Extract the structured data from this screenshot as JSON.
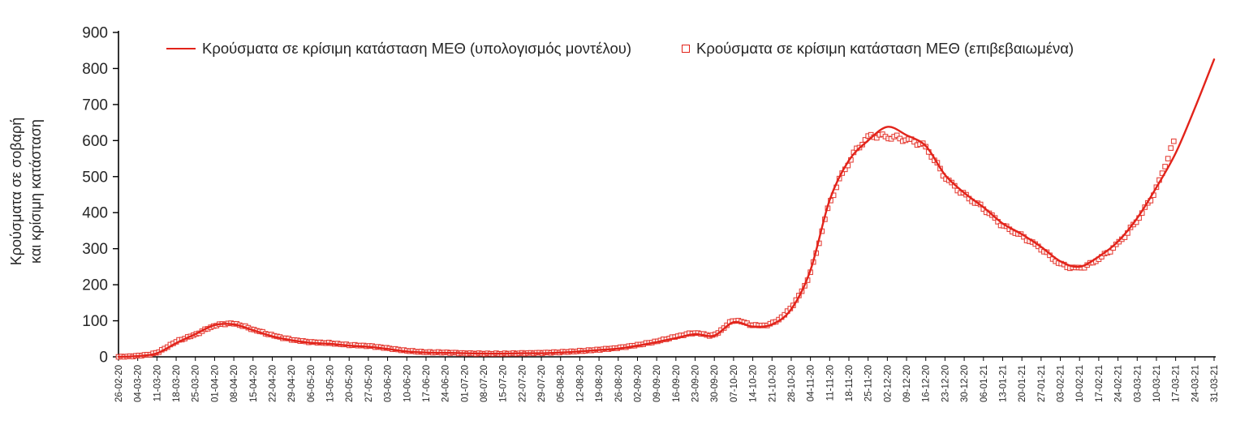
{
  "chart": {
    "y_axis_title_line1": "Κρούσματα σε σοβαρή",
    "y_axis_title_line2": "και κρίσιμη κατάσταση",
    "legend": {
      "model_label": "Κρούσματα σε κρίσιμη κατάσταση ΜΕΘ (υπολογισμός μοντέλου)",
      "confirmed_label": "Κρούσματα σε κρίσιμη κατάσταση ΜΕΘ (επιβεβαιωμένα)"
    },
    "colors": {
      "model_line": "#e2231a",
      "confirmed_marker": "#e2231a",
      "axis": "#000000",
      "text": "#262626"
    }
  },
  "chart_data": {
    "type": "line",
    "title": "",
    "ylabel": "Κρούσματα σε σοβαρή και κρίσιμη κατάσταση",
    "xlabel": "",
    "ylim": [
      0,
      900
    ],
    "yticks": [
      0,
      100,
      200,
      300,
      400,
      500,
      600,
      700,
      800,
      900
    ],
    "grid": false,
    "legend_position": "top",
    "x": [
      "26-02-20",
      "04-03-20",
      "11-03-20",
      "18-03-20",
      "25-03-20",
      "01-04-20",
      "08-04-20",
      "15-04-20",
      "22-04-20",
      "29-04-20",
      "06-05-20",
      "13-05-20",
      "20-05-20",
      "27-05-20",
      "03-06-20",
      "10-06-20",
      "17-06-20",
      "24-06-20",
      "01-07-20",
      "08-07-20",
      "15-07-20",
      "22-07-20",
      "29-07-20",
      "05-08-20",
      "12-08-20",
      "19-08-20",
      "26-08-20",
      "02-09-20",
      "09-09-20",
      "16-09-20",
      "23-09-20",
      "30-09-20",
      "07-10-20",
      "14-10-20",
      "21-10-20",
      "28-10-20",
      "04-11-20",
      "11-11-20",
      "18-11-20",
      "25-11-20",
      "02-12-20",
      "09-12-20",
      "16-12-20",
      "23-12-20",
      "30-12-20",
      "06-01-21",
      "13-01-21",
      "20-01-21",
      "27-01-21",
      "03-02-21",
      "10-02-21",
      "17-02-21",
      "24-02-21",
      "03-03-21",
      "10-03-21",
      "17-03-21",
      "24-03-21",
      "31-03-21"
    ],
    "series": [
      {
        "name": "Κρούσματα σε κρίσιμη κατάσταση ΜΕΘ (υπολογισμός μοντέλου)",
        "type": "line",
        "color": "#e2231a",
        "values": [
          0,
          2,
          10,
          38,
          63,
          88,
          90,
          74,
          57,
          46,
          39,
          36,
          31,
          28,
          22,
          15,
          12,
          11,
          10,
          9,
          9,
          10,
          10,
          12,
          15,
          19,
          23,
          31,
          41,
          52,
          63,
          59,
          96,
          84,
          90,
          132,
          240,
          435,
          545,
          600,
          638,
          615,
          585,
          505,
          455,
          415,
          370,
          340,
          305,
          265,
          250,
          278,
          320,
          385,
          470,
          565,
          690,
          825
        ]
      },
      {
        "name": "Κρούσματα σε κρίσιμη κατάσταση ΜΕΘ (επιβεβαιωμένα)",
        "type": "scatter",
        "marker": "open-square",
        "color": "#e2231a",
        "values": [
          0,
          3,
          12,
          42,
          62,
          86,
          92,
          76,
          60,
          48,
          41,
          38,
          33,
          30,
          24,
          17,
          13,
          12,
          10,
          9,
          9,
          10,
          11,
          13,
          16,
          20,
          25,
          33,
          43,
          56,
          66,
          61,
          100,
          88,
          93,
          138,
          235,
          425,
          540,
          608,
          610,
          602,
          580,
          500,
          450,
          412,
          365,
          335,
          300,
          258,
          247,
          272,
          315,
          380,
          468,
          600,
          null,
          null
        ]
      }
    ]
  }
}
